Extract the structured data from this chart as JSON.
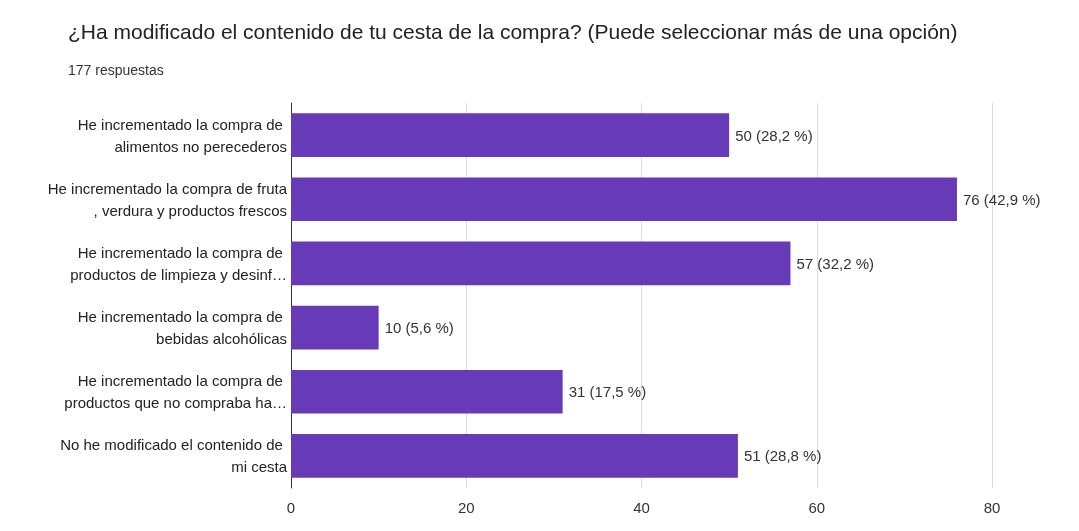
{
  "chart_data": {
    "type": "bar",
    "orientation": "horizontal",
    "title": "¿Ha modificado el contenido de tu cesta de la compra? (Puede seleccionar más de una opción)",
    "subtitle": "177 respuestas",
    "categories": [
      "He incrementado la compra de alimentos no perecederos",
      "He incrementado la compra de fruta, verdura y productos frescos",
      "He incrementado la compra de productos de limpieza y desinf…",
      "He incrementado la compra de bebidas alcohólicas",
      "He incrementado la compra de productos que no compraba ha…",
      "No he modificado el contenido de mi cesta"
    ],
    "values": [
      50,
      76,
      57,
      10,
      31,
      51
    ],
    "value_labels": [
      "50 (28,2 %)",
      "76 (42,9 %)",
      "57 (32,2 %)",
      "10 (5,6 %)",
      "31 (17,5 %)",
      "51 (28,8 %)"
    ],
    "color": "#673ab7",
    "xlim": [
      0,
      80
    ],
    "xticks": [
      0,
      20,
      40,
      60,
      80
    ],
    "grid": "x"
  }
}
